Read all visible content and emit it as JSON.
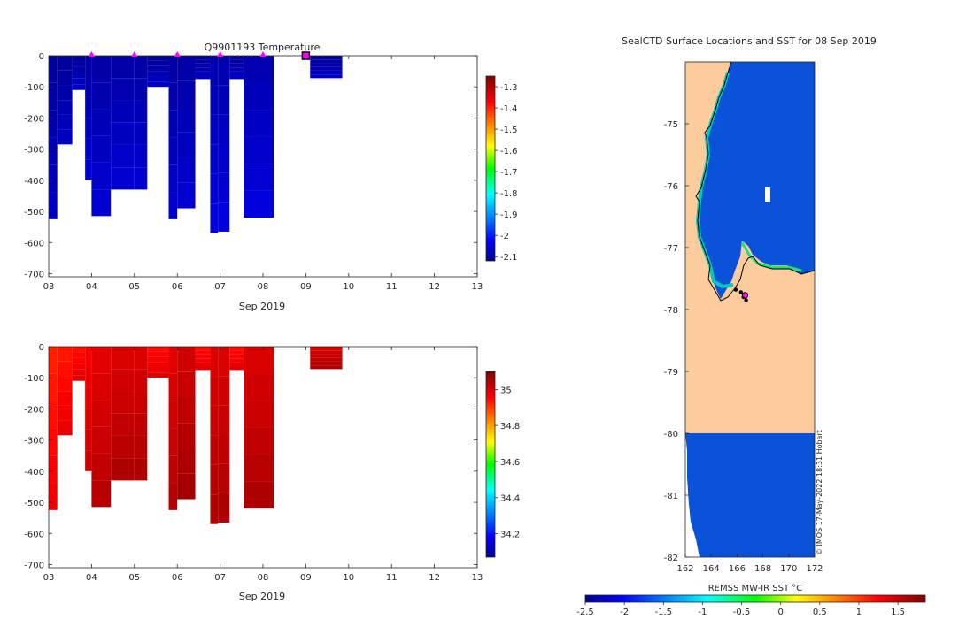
{
  "colors": {
    "ocean_cold": "#0a52d8",
    "land": "#fdcc9c",
    "marker": "#ff00ff",
    "ice_edge": "#00c8b4"
  },
  "chart_data": [
    {
      "type": "heatmap",
      "name": "temperature-section",
      "title": "Q9901193  Temperature",
      "xlabel": "Sep 2019",
      "ylabel": "",
      "x_ticks": [
        "03",
        "04",
        "05",
        "06",
        "07",
        "08",
        "09",
        "10",
        "11",
        "12",
        "13"
      ],
      "x_range": [
        3,
        13
      ],
      "y_ticks": [
        0,
        -100,
        -200,
        -300,
        -400,
        -500,
        -600,
        -700
      ],
      "y_range": [
        -710,
        0
      ],
      "colorbar": {
        "ticks": [
          -1.3,
          -1.4,
          -1.5,
          -1.6,
          -1.7,
          -1.8,
          -1.9,
          -2,
          -2.1
        ],
        "tick_labels": [
          "-1.3",
          "-1.4",
          "-1.5",
          "-1.6",
          "-1.7",
          "-1.8",
          "-1.9",
          "-2",
          "-2.1"
        ],
        "range": [
          -2.12,
          -1.25
        ],
        "colormap": "jet"
      },
      "profiles": [
        {
          "x0": 3.0,
          "x1": 3.2,
          "depth": 525,
          "value": -2.08
        },
        {
          "x0": 3.2,
          "x1": 3.55,
          "depth": 285,
          "value": -2.08
        },
        {
          "x0": 3.55,
          "x1": 3.85,
          "depth": 110,
          "value": -2.08
        },
        {
          "x0": 3.85,
          "x1": 4.0,
          "depth": 400,
          "value": -2.07
        },
        {
          "x0": 4.0,
          "x1": 4.45,
          "depth": 515,
          "value": -2.07
        },
        {
          "x0": 4.45,
          "x1": 5.0,
          "depth": 430,
          "value": -2.07
        },
        {
          "x0": 5.0,
          "x1": 5.3,
          "depth": 430,
          "value": -2.07
        },
        {
          "x0": 5.3,
          "x1": 5.8,
          "depth": 100,
          "value": -2.08
        },
        {
          "x0": 5.8,
          "x1": 6.0,
          "depth": 525,
          "value": -2.07
        },
        {
          "x0": 6.0,
          "x1": 6.42,
          "depth": 490,
          "value": -2.07
        },
        {
          "x0": 6.42,
          "x1": 6.77,
          "depth": 75,
          "value": -2.08
        },
        {
          "x0": 6.77,
          "x1": 6.95,
          "depth": 570,
          "value": -2.06
        },
        {
          "x0": 6.95,
          "x1": 7.22,
          "depth": 565,
          "value": -2.06
        },
        {
          "x0": 7.22,
          "x1": 7.55,
          "depth": 75,
          "value": -2.08
        },
        {
          "x0": 7.55,
          "x1": 8.25,
          "depth": 520,
          "value": -2.06
        },
        {
          "x0": 9.1,
          "x1": 9.85,
          "depth": 72,
          "value": -2.08
        }
      ],
      "markers": [
        {
          "x": 4.0,
          "kind": "triangle"
        },
        {
          "x": 5.0,
          "kind": "triangle"
        },
        {
          "x": 6.0,
          "kind": "triangle"
        },
        {
          "x": 7.0,
          "kind": "triangle"
        },
        {
          "x": 8.0,
          "kind": "triangle"
        },
        {
          "x": 9.0,
          "kind": "square"
        }
      ]
    },
    {
      "type": "heatmap",
      "name": "salinity-section",
      "title": "",
      "xlabel": "Sep 2019",
      "ylabel": "",
      "x_ticks": [
        "03",
        "04",
        "05",
        "06",
        "07",
        "08",
        "09",
        "10",
        "11",
        "12",
        "13"
      ],
      "x_range": [
        3,
        13
      ],
      "y_ticks": [
        0,
        -100,
        -200,
        -300,
        -400,
        -500,
        -600,
        -700
      ],
      "y_range": [
        -710,
        0
      ],
      "colorbar": {
        "ticks": [
          35,
          34.8,
          34.6,
          34.4,
          34.2
        ],
        "tick_labels": [
          "35",
          "34.8",
          "34.6",
          "34.4",
          "34.2"
        ],
        "range": [
          34.07,
          35.1
        ],
        "colormap": "jet"
      },
      "profiles": [
        {
          "x0": 3.0,
          "x1": 3.2,
          "depth": 525,
          "value": 34.96
        },
        {
          "x0": 3.2,
          "x1": 3.55,
          "depth": 285,
          "value": 34.97
        },
        {
          "x0": 3.55,
          "x1": 3.85,
          "depth": 110,
          "value": 34.98
        },
        {
          "x0": 3.85,
          "x1": 4.0,
          "depth": 400,
          "value": 35.0
        },
        {
          "x0": 4.0,
          "x1": 4.45,
          "depth": 515,
          "value": 35.02
        },
        {
          "x0": 4.45,
          "x1": 5.0,
          "depth": 430,
          "value": 35.03
        },
        {
          "x0": 5.0,
          "x1": 5.3,
          "depth": 430,
          "value": 35.03
        },
        {
          "x0": 5.3,
          "x1": 5.8,
          "depth": 100,
          "value": 34.98
        },
        {
          "x0": 5.8,
          "x1": 6.0,
          "depth": 525,
          "value": 35.02
        },
        {
          "x0": 6.0,
          "x1": 6.42,
          "depth": 490,
          "value": 35.04
        },
        {
          "x0": 6.42,
          "x1": 6.77,
          "depth": 75,
          "value": 34.98
        },
        {
          "x0": 6.77,
          "x1": 6.95,
          "depth": 570,
          "value": 35.03
        },
        {
          "x0": 6.95,
          "x1": 7.22,
          "depth": 565,
          "value": 35.03
        },
        {
          "x0": 7.22,
          "x1": 7.55,
          "depth": 75,
          "value": 34.98
        },
        {
          "x0": 7.55,
          "x1": 8.25,
          "depth": 520,
          "value": 35.03
        },
        {
          "x0": 9.1,
          "x1": 9.85,
          "depth": 72,
          "value": 35.03
        }
      ],
      "markers": []
    },
    {
      "type": "heatmap",
      "name": "sst-map",
      "title": "SealCTD Surface Locations and SST for 08 Sep 2019",
      "xlabel": "",
      "ylabel": "",
      "x_ticks": [
        "162",
        "164",
        "166",
        "168",
        "170",
        "172"
      ],
      "x_range": [
        162,
        172
      ],
      "y_ticks": [
        "-75",
        "-76",
        "-77",
        "-78",
        "-79",
        "-80",
        "-81",
        "-82"
      ],
      "y_range": [
        -82,
        -74
      ],
      "colorbar": {
        "label": "REMSS MW-IR SST °C",
        "ticks": [
          -2.5,
          -2,
          -1.5,
          -1,
          -0.5,
          0,
          0.5,
          1,
          1.5
        ],
        "tick_labels": [
          "-2.5",
          "-2",
          "-1.5",
          "-1",
          "-0.5",
          "0",
          "0.5",
          "1",
          "1.5"
        ],
        "range": [
          -2.5,
          1.85
        ],
        "colormap": "jet"
      },
      "regions": [
        {
          "kind": "land",
          "label": "Land"
        },
        {
          "kind": "ocean",
          "sst": -2.0
        },
        {
          "kind": "ice-edge",
          "sst": -1.3
        }
      ],
      "track_points": [
        {
          "lon": 165.9,
          "lat": -77.68
        },
        {
          "lon": 166.3,
          "lat": -77.72
        },
        {
          "lon": 166.6,
          "lat": -77.78
        },
        {
          "lon": 166.7,
          "lat": -77.85
        },
        {
          "lon": 166.5,
          "lat": -77.8
        }
      ],
      "current_location": {
        "lon": 166.62,
        "lat": -77.77
      },
      "credit": "© IMOS 17-May-2022 18:31 Hobart"
    }
  ]
}
